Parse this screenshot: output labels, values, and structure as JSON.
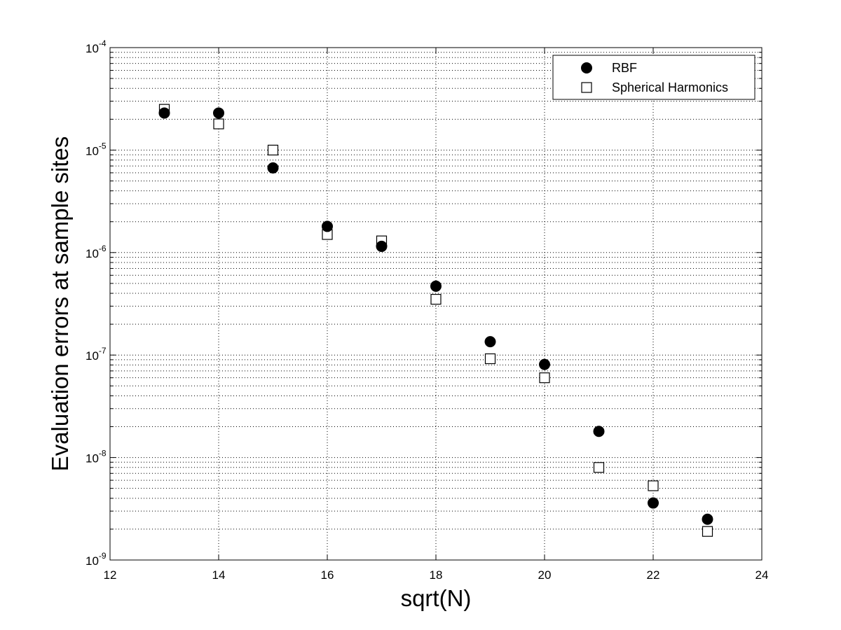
{
  "chart_data": {
    "type": "scatter",
    "xlabel": "sqrt(N)",
    "ylabel": "Evaluation errors at sample sites",
    "xlim": [
      12,
      24
    ],
    "ylim": [
      1e-09,
      0.0001
    ],
    "yscale": "log",
    "x_ticks": [
      "12",
      "14",
      "16",
      "18",
      "20",
      "22",
      "24"
    ],
    "y_ticks": [
      {
        "base": "10",
        "exp": "-9"
      },
      {
        "base": "10",
        "exp": "-8"
      },
      {
        "base": "10",
        "exp": "-7"
      },
      {
        "base": "10",
        "exp": "-6"
      },
      {
        "base": "10",
        "exp": "-5"
      },
      {
        "base": "10",
        "exp": "-4"
      }
    ],
    "grid": true,
    "legend_position": "top-right",
    "series": [
      {
        "name": "RBF",
        "marker": "filled-circle",
        "color": "#000000",
        "x": [
          13,
          14,
          15,
          16,
          17,
          18,
          19,
          20,
          21,
          22,
          23
        ],
        "y": [
          2.3e-05,
          2.3e-05,
          6.7e-06,
          1.8e-06,
          1.15e-06,
          4.7e-07,
          1.35e-07,
          8.1e-08,
          1.8e-08,
          3.6e-09,
          2.5e-09
        ]
      },
      {
        "name": "Spherical Harmonics",
        "marker": "open-square",
        "color": "#000000",
        "x": [
          13,
          14,
          15,
          16,
          17,
          18,
          19,
          20,
          21,
          22,
          23
        ],
        "y": [
          2.5e-05,
          1.8e-05,
          1e-05,
          1.5e-06,
          1.3e-06,
          3.5e-07,
          9.2e-08,
          6e-08,
          8e-09,
          5.3e-09,
          1.9e-09
        ]
      }
    ]
  }
}
